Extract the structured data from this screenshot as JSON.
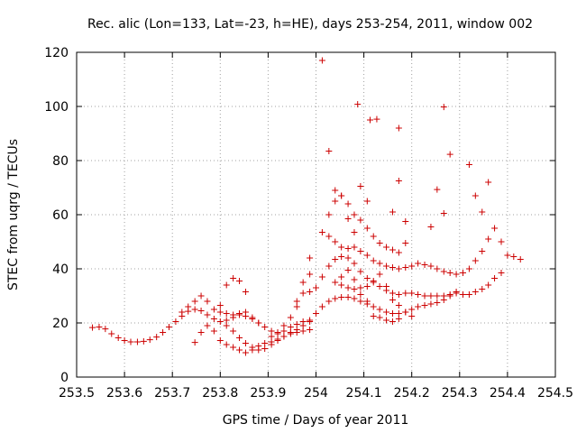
{
  "chart_data": {
    "type": "scatter",
    "title": "Rec. alic (Lon=133, Lat=-23, h=HE), days 253-254, 2011, window 002",
    "xlabel": "GPS time / Days of year 2011",
    "ylabel": "STEC from uqrg / TECUs",
    "xlim": [
      253.5,
      254.5
    ],
    "ylim": [
      0,
      120
    ],
    "xticks": [
      "253.5",
      "253.6",
      "253.7",
      "253.8",
      "253.9",
      "254",
      "254.1",
      "254.2",
      "254.3",
      "254.4",
      "254.5"
    ],
    "yticks": [
      "0",
      "20",
      "40",
      "60",
      "80",
      "100",
      "120"
    ],
    "grid": true,
    "marker": "+",
    "color": "#cc0000",
    "points": [
      [
        253.533,
        18.3
      ],
      [
        253.547,
        18.5
      ],
      [
        253.56,
        17.8
      ],
      [
        253.573,
        16.0
      ],
      [
        253.587,
        14.5
      ],
      [
        253.6,
        13.5
      ],
      [
        253.613,
        13.0
      ],
      [
        253.627,
        13.0
      ],
      [
        253.64,
        13.2
      ],
      [
        253.653,
        13.8
      ],
      [
        253.667,
        14.8
      ],
      [
        253.68,
        16.5
      ],
      [
        253.693,
        18.5
      ],
      [
        253.707,
        20.5
      ],
      [
        253.72,
        22.5
      ],
      [
        253.733,
        24.3
      ],
      [
        253.747,
        25.0
      ],
      [
        253.76,
        24.5
      ],
      [
        253.773,
        23.0
      ],
      [
        253.787,
        21.5
      ],
      [
        253.8,
        20.5
      ],
      [
        253.813,
        21.0
      ],
      [
        253.827,
        22.0
      ],
      [
        253.84,
        23.0
      ],
      [
        253.853,
        22.5
      ],
      [
        253.867,
        21.5
      ],
      [
        253.88,
        20.0
      ],
      [
        253.893,
        18.5
      ],
      [
        253.907,
        17.0
      ],
      [
        253.92,
        16.5
      ],
      [
        253.933,
        17.0
      ],
      [
        253.947,
        18.5
      ],
      [
        253.96,
        19.5
      ],
      [
        253.973,
        20.5
      ],
      [
        253.987,
        21.0
      ],
      [
        253.72,
        24.0
      ],
      [
        253.733,
        26.0
      ],
      [
        253.747,
        28.0
      ],
      [
        253.76,
        30.0
      ],
      [
        253.773,
        28.0
      ],
      [
        253.787,
        25.0
      ],
      [
        253.8,
        24.0
      ],
      [
        253.813,
        23.5
      ],
      [
        253.827,
        23.0
      ],
      [
        253.84,
        23.5
      ],
      [
        253.853,
        24.0
      ],
      [
        253.867,
        22.0
      ],
      [
        253.88,
        20.0
      ],
      [
        253.747,
        12.8
      ],
      [
        253.76,
        16.5
      ],
      [
        253.773,
        19.0
      ],
      [
        253.787,
        17.0
      ],
      [
        253.8,
        13.5
      ],
      [
        253.813,
        12.0
      ],
      [
        253.827,
        11.0
      ],
      [
        253.84,
        10.0
      ],
      [
        253.853,
        9.0
      ],
      [
        253.867,
        10.0
      ],
      [
        253.88,
        11.5
      ],
      [
        253.893,
        12.5
      ],
      [
        253.907,
        13.0
      ],
      [
        253.92,
        14.0
      ],
      [
        253.933,
        15.0
      ],
      [
        253.947,
        16.0
      ],
      [
        253.96,
        16.5
      ],
      [
        253.973,
        17.0
      ],
      [
        253.987,
        17.5
      ],
      [
        253.8,
        26.5
      ],
      [
        253.813,
        34.0
      ],
      [
        253.827,
        36.5
      ],
      [
        253.84,
        35.5
      ],
      [
        253.853,
        31.5
      ],
      [
        253.813,
        19.0
      ],
      [
        253.827,
        17.0
      ],
      [
        253.84,
        14.5
      ],
      [
        253.853,
        12.5
      ],
      [
        253.867,
        11.0
      ],
      [
        253.88,
        10.0
      ],
      [
        253.893,
        10.5
      ],
      [
        253.907,
        12.0
      ],
      [
        253.92,
        13.5
      ],
      [
        253.933,
        15.0
      ],
      [
        253.947,
        16.5
      ],
      [
        253.96,
        17.5
      ],
      [
        253.973,
        19.0
      ],
      [
        253.987,
        20.5
      ],
      [
        253.907,
        15.0
      ],
      [
        253.92,
        16.0
      ],
      [
        253.933,
        19.0
      ],
      [
        253.947,
        22.0
      ],
      [
        253.96,
        26.0
      ],
      [
        253.973,
        31.0
      ],
      [
        253.987,
        38.0
      ],
      [
        253.987,
        44.0
      ],
      [
        253.96,
        28.0
      ],
      [
        253.973,
        35.0
      ],
      [
        253.987,
        31.5
      ],
      [
        254.0,
        23.5
      ],
      [
        254.013,
        26.0
      ],
      [
        254.027,
        28.0
      ],
      [
        254.04,
        29.0
      ],
      [
        254.053,
        29.5
      ],
      [
        254.067,
        29.5
      ],
      [
        254.08,
        29.0
      ],
      [
        254.093,
        28.0
      ],
      [
        254.107,
        27.0
      ],
      [
        254.12,
        26.0
      ],
      [
        254.133,
        25.0
      ],
      [
        254.147,
        24.0
      ],
      [
        254.16,
        23.5
      ],
      [
        254.173,
        23.5
      ],
      [
        254.187,
        24.0
      ],
      [
        254.2,
        25.0
      ],
      [
        254.213,
        26.0
      ],
      [
        254.227,
        26.5
      ],
      [
        254.24,
        27.0
      ],
      [
        254.253,
        27.5
      ],
      [
        254.267,
        28.5
      ],
      [
        254.28,
        30.0
      ],
      [
        254.293,
        31.5
      ],
      [
        254.307,
        30.5
      ],
      [
        254.32,
        30.5
      ],
      [
        254.333,
        31.5
      ],
      [
        254.347,
        32.5
      ],
      [
        254.36,
        34.0
      ],
      [
        254.373,
        36.5
      ],
      [
        254.387,
        38.5
      ],
      [
        254.0,
        33.0
      ],
      [
        254.013,
        37.0
      ],
      [
        254.027,
        41.0
      ],
      [
        254.04,
        43.5
      ],
      [
        254.053,
        44.5
      ],
      [
        254.067,
        44.0
      ],
      [
        254.08,
        42.0
      ],
      [
        254.093,
        39.0
      ],
      [
        254.107,
        36.5
      ],
      [
        254.12,
        35.0
      ],
      [
        254.133,
        33.5
      ],
      [
        254.147,
        32.0
      ],
      [
        254.16,
        31.0
      ],
      [
        254.173,
        30.5
      ],
      [
        254.187,
        31.0
      ],
      [
        254.2,
        31.0
      ],
      [
        254.213,
        30.5
      ],
      [
        254.227,
        30.0
      ],
      [
        254.24,
        30.0
      ],
      [
        254.253,
        30.0
      ],
      [
        254.267,
        30.0
      ],
      [
        254.28,
        30.5
      ],
      [
        254.293,
        31.0
      ],
      [
        254.013,
        53.5
      ],
      [
        254.027,
        52.0
      ],
      [
        254.04,
        50.0
      ],
      [
        254.053,
        48.0
      ],
      [
        254.067,
        47.5
      ],
      [
        254.08,
        48.0
      ],
      [
        254.093,
        46.5
      ],
      [
        254.107,
        45.0
      ],
      [
        254.12,
        43.0
      ],
      [
        254.133,
        42.0
      ],
      [
        254.147,
        41.0
      ],
      [
        254.16,
        40.5
      ],
      [
        254.173,
        40.0
      ],
      [
        254.187,
        40.5
      ],
      [
        254.2,
        41.0
      ],
      [
        254.213,
        42.0
      ],
      [
        254.227,
        41.5
      ],
      [
        254.24,
        41.0
      ],
      [
        254.253,
        40.0
      ],
      [
        254.267,
        39.0
      ],
      [
        254.28,
        38.5
      ],
      [
        254.293,
        38.0
      ],
      [
        254.307,
        38.5
      ],
      [
        254.32,
        40.0
      ],
      [
        254.333,
        43.0
      ],
      [
        254.347,
        46.5
      ],
      [
        254.36,
        51.0
      ],
      [
        254.373,
        55.0
      ],
      [
        254.387,
        50.0
      ],
      [
        254.4,
        45.0
      ],
      [
        254.413,
        44.5
      ],
      [
        254.427,
        43.5
      ],
      [
        254.027,
        60.0
      ],
      [
        254.04,
        65.0
      ],
      [
        254.053,
        67.0
      ],
      [
        254.067,
        64.0
      ],
      [
        254.08,
        60.0
      ],
      [
        254.093,
        58.0
      ],
      [
        254.107,
        55.0
      ],
      [
        254.12,
        52.0
      ],
      [
        254.133,
        49.5
      ],
      [
        254.147,
        48.0
      ],
      [
        254.16,
        47.0
      ],
      [
        254.173,
        46.0
      ],
      [
        254.187,
        49.5
      ],
      [
        254.027,
        83.5
      ],
      [
        254.04,
        69.0
      ],
      [
        254.053,
        67.0
      ],
      [
        254.067,
        58.5
      ],
      [
        254.08,
        53.5
      ],
      [
        254.093,
        70.5
      ],
      [
        254.107,
        65.0
      ],
      [
        254.013,
        117.0
      ],
      [
        254.087,
        100.8
      ],
      [
        254.113,
        95.0
      ],
      [
        254.127,
        95.3
      ],
      [
        254.173,
        92.0
      ],
      [
        254.267,
        99.8
      ],
      [
        254.28,
        82.3
      ],
      [
        254.32,
        78.5
      ],
      [
        254.333,
        67.0
      ],
      [
        254.347,
        61.0
      ],
      [
        254.36,
        72.0
      ],
      [
        254.253,
        69.3
      ],
      [
        254.267,
        60.5
      ],
      [
        254.24,
        55.5
      ],
      [
        254.173,
        72.5
      ],
      [
        254.16,
        61.0
      ],
      [
        254.187,
        57.5
      ],
      [
        254.04,
        35.0
      ],
      [
        254.053,
        34.0
      ],
      [
        254.067,
        33.0
      ],
      [
        254.08,
        32.5
      ],
      [
        254.093,
        33.0
      ],
      [
        254.107,
        33.5
      ],
      [
        254.12,
        35.5
      ],
      [
        254.133,
        38.0
      ],
      [
        254.147,
        33.5
      ],
      [
        254.16,
        28.5
      ],
      [
        254.173,
        26.5
      ],
      [
        254.187,
        24.0
      ],
      [
        254.2,
        22.5
      ],
      [
        254.053,
        37.0
      ],
      [
        254.067,
        39.5
      ],
      [
        254.08,
        36.0
      ],
      [
        254.093,
        30.5
      ],
      [
        254.107,
        28.0
      ],
      [
        254.12,
        22.5
      ],
      [
        254.133,
        22.0
      ],
      [
        254.147,
        21.0
      ],
      [
        254.16,
        20.5
      ],
      [
        254.173,
        21.5
      ]
    ]
  }
}
